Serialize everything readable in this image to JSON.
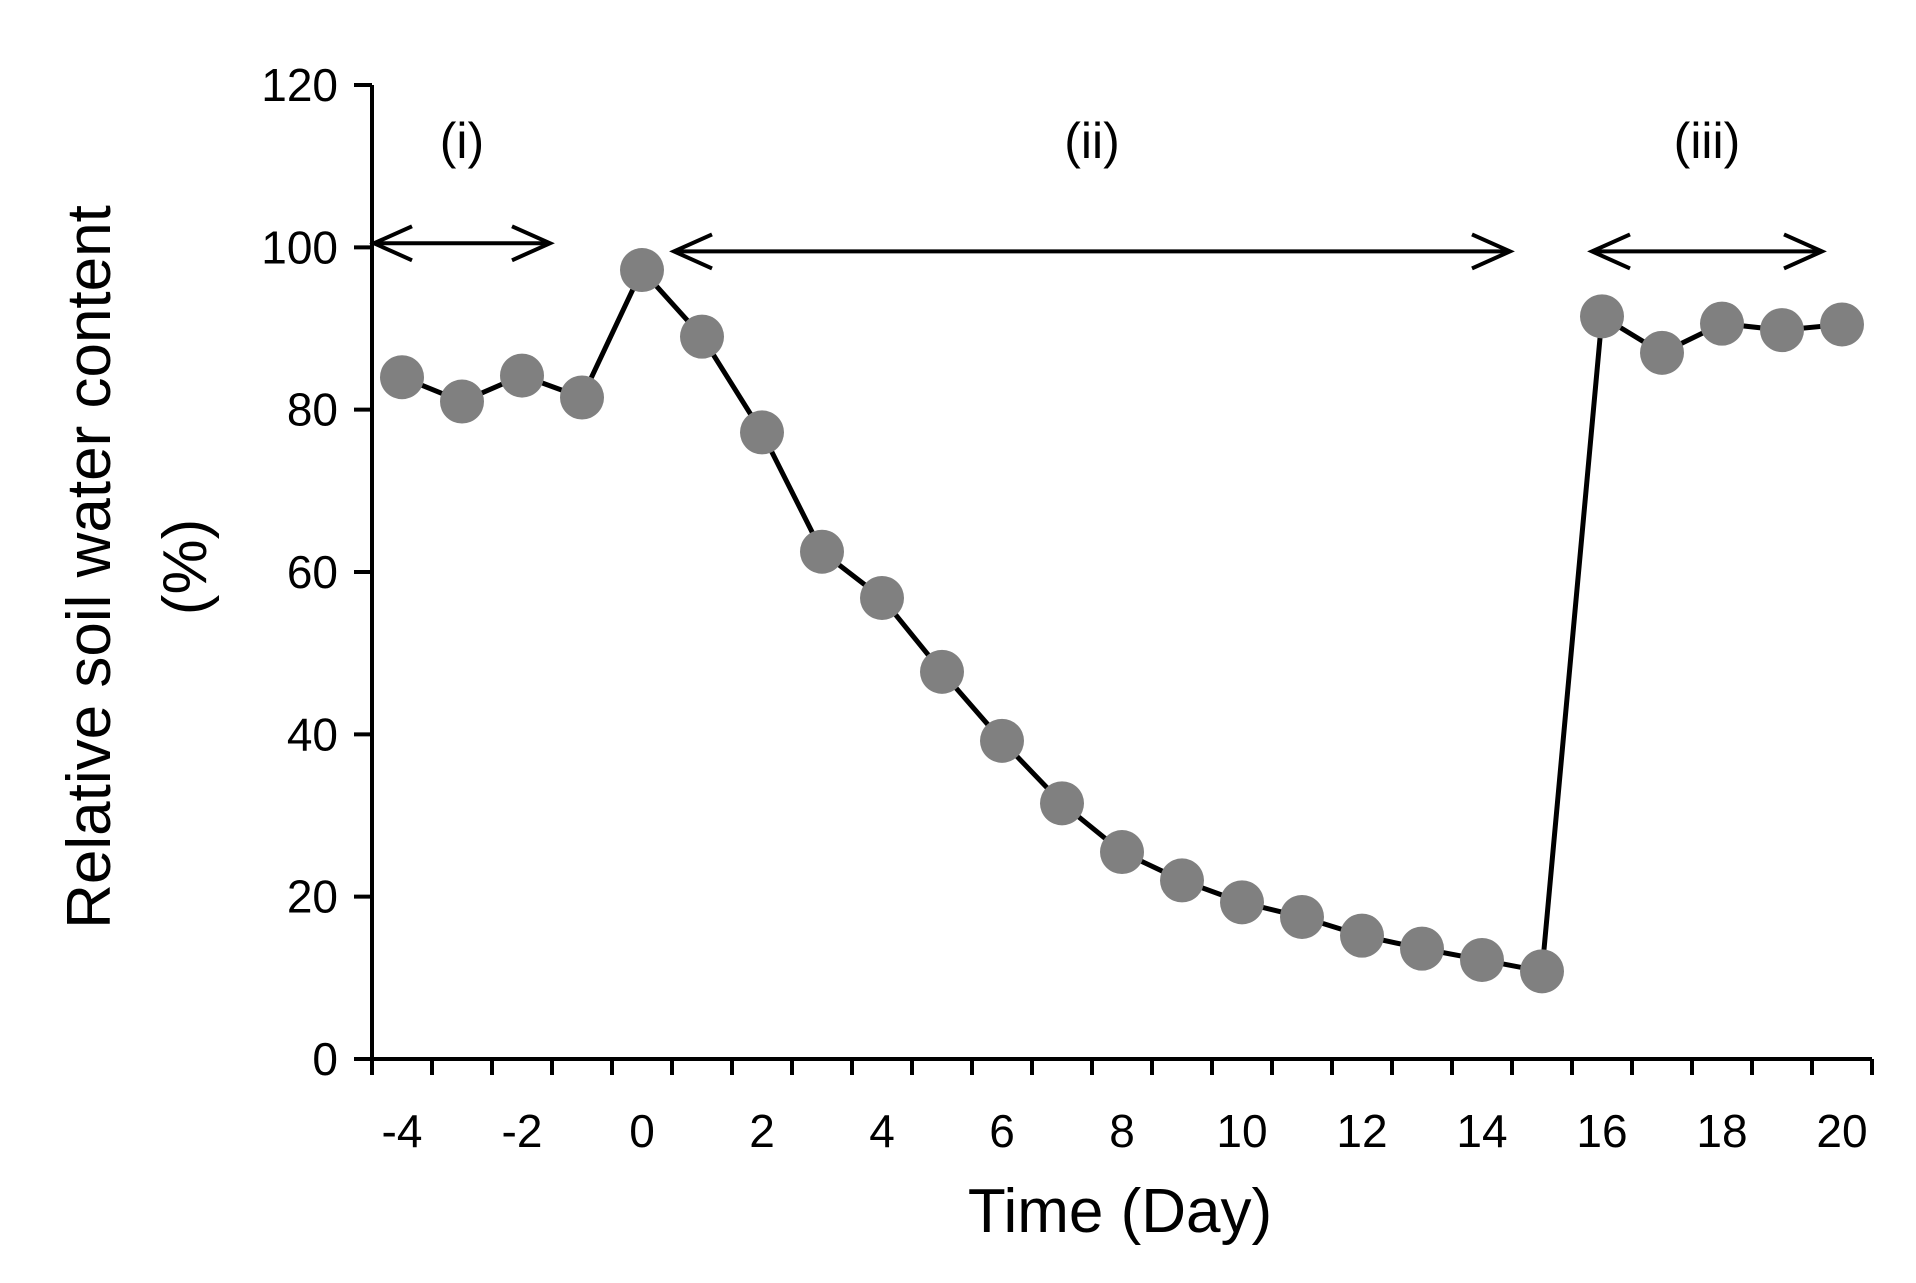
{
  "chart_data": {
    "type": "line",
    "title": "",
    "xlabel": "Time (Day)",
    "ylabel_line1": "Relative soil water content",
    "ylabel_line2": "(%)",
    "xlim": [
      -4.5,
      20.5
    ],
    "ylim": [
      0,
      120
    ],
    "xticks": [
      -4,
      -2,
      0,
      2,
      4,
      6,
      8,
      10,
      12,
      14,
      16,
      18,
      20
    ],
    "yticks": [
      0,
      20,
      40,
      60,
      80,
      100,
      120
    ],
    "grid": false,
    "legend": "none",
    "series": [
      {
        "name": "Relative soil water content",
        "color": "#808080",
        "line_color": "#000000",
        "x": [
          -4,
          -3,
          -2,
          -1,
          0,
          1,
          2,
          3,
          4,
          5,
          6,
          7,
          8,
          9,
          10,
          11,
          12,
          13,
          14,
          15,
          16,
          17,
          18,
          19,
          20
        ],
        "values": [
          84,
          81,
          84.2,
          81.5,
          97.2,
          89,
          77.2,
          62.5,
          56.8,
          47.7,
          39.2,
          31.5,
          25.5,
          22,
          19.3,
          17.5,
          15.2,
          13.6,
          12.2,
          10.8,
          91.5,
          87,
          90.6,
          89.8,
          90.5
        ]
      }
    ],
    "annotations": [
      {
        "label": "(i)",
        "x_start": -4.5,
        "x_end": -1.5,
        "y": 100.5
      },
      {
        "label": "(ii)",
        "x_start": 0.5,
        "x_end": 14.5,
        "y": 99.5
      },
      {
        "label": "(iii)",
        "x_start": 15.8,
        "x_end": 19.7,
        "y": 99.5
      }
    ]
  }
}
